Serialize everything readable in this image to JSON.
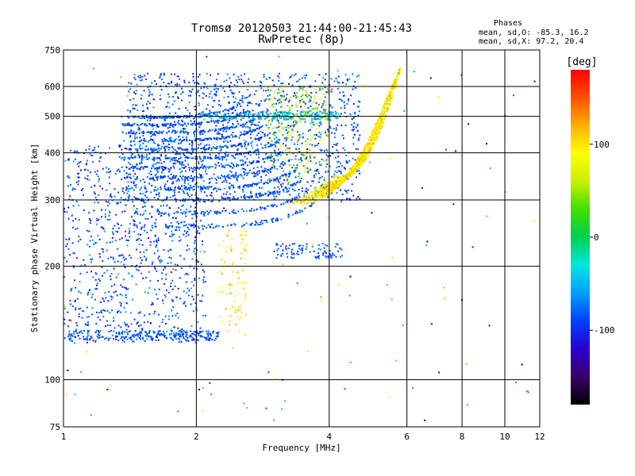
{
  "chart_data": {
    "type": "scatter",
    "title": "Tromsø 20120503 21:44:00-21:45:43",
    "subtitle": "RwPretec (8p)",
    "phases": {
      "heading": "Phases",
      "line0": "mean, sd,O: -85.3, 16.2",
      "line1": "mean, sd,X:  97.2, 20.4"
    },
    "xlabel": "Frequency [MHz]",
    "ylabel": "Stationary phase Virtual Height [km]",
    "x_scale": "log",
    "y_scale": "log",
    "xlim": [
      1,
      12
    ],
    "ylim": [
      75,
      750
    ],
    "x_ticks": [
      1,
      2,
      4,
      6,
      8,
      10,
      12
    ],
    "x_tick_labels": [
      "1",
      "2",
      "4",
      "6",
      "8",
      "10",
      "12"
    ],
    "y_ticks": [
      75,
      100,
      200,
      300,
      400,
      500,
      600,
      750
    ],
    "y_tick_labels": [
      "75",
      "100",
      "200",
      "300",
      "400",
      "500",
      "600",
      "750"
    ],
    "grid": true,
    "colorbar": {
      "label": "[deg]",
      "min": -180,
      "max": 180,
      "ticks": [
        100,
        0,
        -100
      ],
      "tick_labels": [
        "100",
        "0",
        "-100"
      ],
      "colormap": [
        "#000000",
        "#3a006a",
        "#2a00d0",
        "#0040ff",
        "#00a0ff",
        "#00e8e0",
        "#00d050",
        "#40e000",
        "#c8f000",
        "#ffff00",
        "#ffb000",
        "#ff5000",
        "#ff0000"
      ]
    },
    "series": [
      {
        "type": "O-mode trace (phase ≈ -85 deg)",
        "f_range": [
          1.35,
          3.7
        ],
        "h_range": [
          255,
          330
        ]
      },
      {
        "type": "O-mode F-layer spread",
        "f_range": [
          1.4,
          4.7
        ],
        "h_range": [
          300,
          640
        ]
      },
      {
        "type": "E/low trace",
        "f_range": [
          1.0,
          2.2
        ],
        "h_range": [
          125,
          135
        ]
      },
      {
        "type": "X-mode trace (phase ≈ 97 deg)",
        "f_range": [
          3.0,
          5.5
        ],
        "h_range": [
          290,
          600
        ]
      },
      {
        "type": "X-mode low echoes",
        "f_range": [
          2.2,
          2.6
        ],
        "h_range": [
          130,
          250
        ]
      }
    ]
  }
}
